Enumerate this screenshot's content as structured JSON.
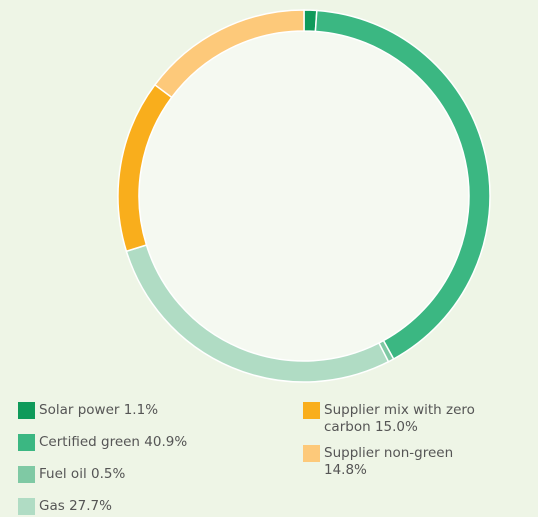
{
  "chart_data": {
    "type": "donut",
    "categories": [
      "Solar power",
      "Certified green",
      "Fuel oil",
      "Gas",
      "Supplier mix with zero carbon",
      "Supplier non-green"
    ],
    "values": [
      1.1,
      40.9,
      0.5,
      27.7,
      15.0,
      14.8
    ],
    "value_labels": [
      "1.1%",
      "40.9%",
      "0.5%",
      "27.7%",
      "15.0%",
      "14.8%"
    ],
    "colors": [
      "#0f9a5a",
      "#3bb782",
      "#7fc9a4",
      "#b0dcc4",
      "#f9ae1c",
      "#fdc97a"
    ]
  }
}
